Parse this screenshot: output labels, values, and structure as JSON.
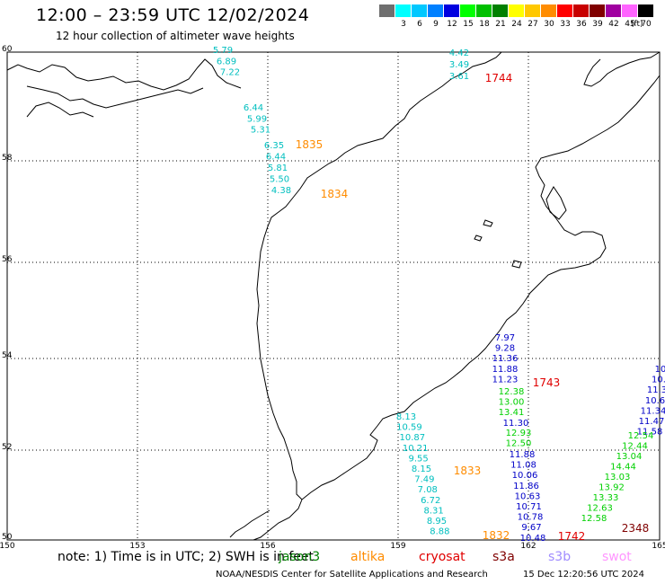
{
  "header": {
    "title": "12:00 – 23:59 UTC 12/02/2024",
    "subtitle": "12 hour collection of altimeter wave heights"
  },
  "legend": {
    "unit": "(ft)",
    "items": [
      {
        "label": "",
        "color": "#6f6f6f"
      },
      {
        "label": "3",
        "color": "#00ffff"
      },
      {
        "label": "6",
        "color": "#00c8ff"
      },
      {
        "label": "9",
        "color": "#0080ff"
      },
      {
        "label": "12",
        "color": "#0000e0"
      },
      {
        "label": "15",
        "color": "#00ff00"
      },
      {
        "label": "18",
        "color": "#00c000"
      },
      {
        "label": "21",
        "color": "#008000"
      },
      {
        "label": "24",
        "color": "#ffff00"
      },
      {
        "label": "27",
        "color": "#ffc800"
      },
      {
        "label": "30",
        "color": "#ff8c00"
      },
      {
        "label": "33",
        "color": "#ff0000"
      },
      {
        "label": "36",
        "color": "#c80000"
      },
      {
        "label": "39",
        "color": "#800000"
      },
      {
        "label": "42",
        "color": "#a000a0"
      },
      {
        "label": "45",
        "color": "#ff64ff"
      },
      {
        "label": "70",
        "color": "#000000"
      }
    ]
  },
  "axes": {
    "lat_labels": [
      "60",
      "58",
      "56",
      "54",
      "52",
      "50"
    ],
    "lon_labels": [
      "150",
      "153",
      "156",
      "159",
      "162",
      "165"
    ]
  },
  "tracks": [
    {
      "color": "#00bfbf",
      "readings": [
        "5.79",
        "6.89",
        "7.22",
        "6.44",
        "5.99",
        "5.31",
        "6.35",
        "6.44",
        "5.81",
        "5.50",
        "4.38"
      ]
    },
    {
      "color": "#00bfbf",
      "readings": [
        "4.42",
        "3.49",
        "3.61"
      ]
    },
    {
      "color": "#0000c8",
      "readings": [
        "7.97",
        "9.28",
        "11.36",
        "11.88",
        "11.23"
      ]
    },
    {
      "color": "#00d000",
      "readings": [
        "12.38",
        "13.00",
        "13.41"
      ]
    },
    {
      "color": "#0000c8",
      "readings": [
        "11.30"
      ]
    },
    {
      "color": "#00d000",
      "readings": [
        "12.93",
        "12.50"
      ]
    },
    {
      "color": "#0000c8",
      "readings": [
        "11.88",
        "11.08",
        "10.06",
        "11.86",
        "10.63",
        "10.71",
        "10.78",
        "9.67",
        "10.48"
      ]
    },
    {
      "color": "#00bfbf",
      "readings": [
        "8.13",
        "10.59",
        "10.87",
        "10.21",
        "9.55",
        "8.15",
        "7.49",
        "7.08",
        "6.72",
        "8.31",
        "8.95",
        "8.88"
      ]
    },
    {
      "color": "#0000c8",
      "readings": [
        "10",
        "10.",
        "11.3",
        "10.6",
        "11.34",
        "11.47",
        "11.58"
      ]
    },
    {
      "color": "#00d000",
      "readings": [
        "12.54",
        "12.44",
        "13.04",
        "14.44",
        "13.03",
        "13.92",
        "13.33",
        "12.63",
        "12.58"
      ]
    }
  ],
  "time_labels": [
    {
      "text": "1744",
      "color": "#e00000"
    },
    {
      "text": "1835",
      "color": "#ff8c00"
    },
    {
      "text": "1834",
      "color": "#ff8c00"
    },
    {
      "text": "1743",
      "color": "#e00000"
    },
    {
      "text": "1833",
      "color": "#ff8c00"
    },
    {
      "text": "1832",
      "color": "#ff8c00"
    },
    {
      "text": "1742",
      "color": "#e00000"
    },
    {
      "text": "2348",
      "color": "#800000"
    }
  ],
  "footer": {
    "note": "note: 1) Time is in UTC; 2) SWH is in feet",
    "satellites": [
      {
        "name": "jason3",
        "color": "#008000"
      },
      {
        "name": "altika",
        "color": "#ff8c00"
      },
      {
        "name": "cryosat",
        "color": "#e00000"
      },
      {
        "name": "s3a",
        "color": "#800000"
      },
      {
        "name": "s3b",
        "color": "#a08cff"
      },
      {
        "name": "swot",
        "color": "#ff96ff"
      }
    ],
    "credit": "NOAA/NESDIS Center for Satellite Applications and Research",
    "timestamp": "15 Dec 12:20:56 UTC 2024"
  }
}
